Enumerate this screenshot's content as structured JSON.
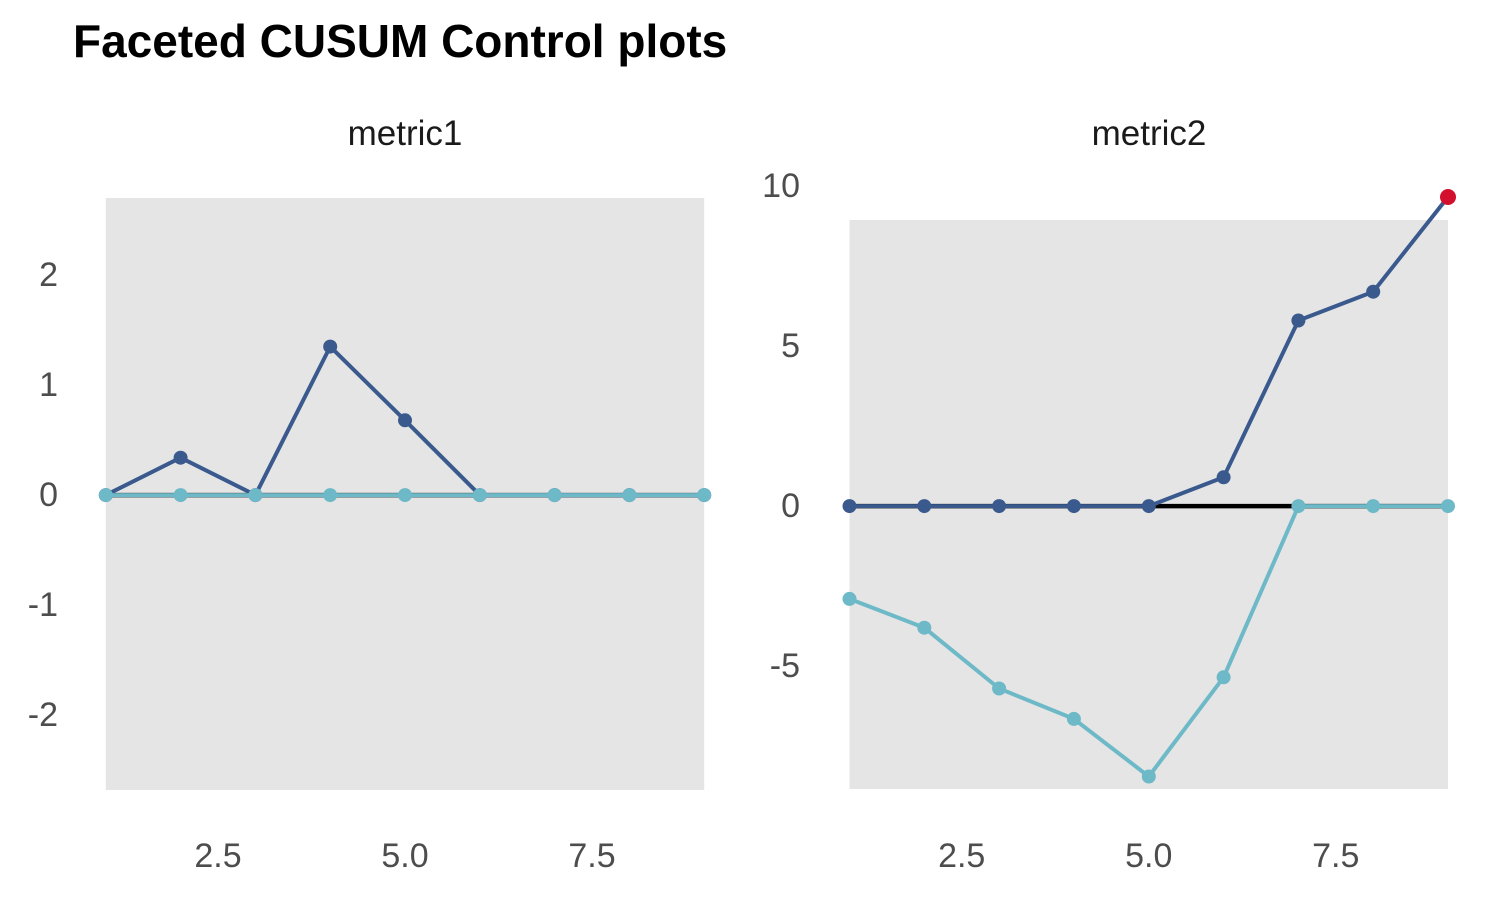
{
  "chart_data": {
    "type": "line",
    "title": "Faceted CUSUM Control plots",
    "colors": {
      "high": "#3A5A8E",
      "low": "#6DB9C7",
      "signal": "#D2102D",
      "center_line": "#000000",
      "panel_bg": "#E5E5E5",
      "axis_text": "#4D4D4D",
      "strip_text": "#1A1A1A",
      "title_text": "#000000"
    },
    "x": [
      1,
      2,
      3,
      4,
      5,
      6,
      7,
      8,
      9
    ],
    "facets": [
      {
        "label": "metric1",
        "ylim": [
          -2.68,
          2.7
        ],
        "center_line": 0,
        "yticks": [
          {
            "label": "2",
            "value": 2
          },
          {
            "label": "1",
            "value": 1
          },
          {
            "label": "0",
            "value": 0
          },
          {
            "label": "-1",
            "value": -1
          },
          {
            "label": "-2",
            "value": -2
          }
        ],
        "xticks": [
          {
            "label": "2.5",
            "value": 2.5
          },
          {
            "label": "5.0",
            "value": 5.0
          },
          {
            "label": "7.5",
            "value": 7.5
          }
        ],
        "series": [
          {
            "name": "cusum_high",
            "color_key": "high",
            "values": [
              0,
              0.34,
              0,
              1.35,
              0.68,
              0,
              0,
              0,
              0
            ],
            "signal_points": []
          },
          {
            "name": "cusum_low",
            "color_key": "low",
            "values": [
              0,
              0,
              0,
              0,
              0,
              0,
              0,
              0,
              0
            ],
            "signal_points": []
          }
        ]
      },
      {
        "label": "metric2",
        "ylim": [
          -8.84,
          8.94
        ],
        "center_line": 0,
        "yticks": [
          {
            "label": "10",
            "value": 10
          },
          {
            "label": "5",
            "value": 5
          },
          {
            "label": "0",
            "value": 0
          },
          {
            "label": "-5",
            "value": -5
          }
        ],
        "xticks": [
          {
            "label": "2.5",
            "value": 2.5
          },
          {
            "label": "5.0",
            "value": 5.0
          },
          {
            "label": "7.5",
            "value": 7.5
          }
        ],
        "series": [
          {
            "name": "cusum_high",
            "color_key": "high",
            "values": [
              0,
              0,
              0,
              0,
              0,
              0.9,
              5.8,
              6.7,
              9.66
            ],
            "signal_points": [
              8
            ]
          },
          {
            "name": "cusum_low",
            "color_key": "low",
            "values": [
              -2.9,
              -3.8,
              -5.7,
              -6.65,
              -8.45,
              -5.35,
              0,
              0,
              0
            ],
            "signal_points": []
          }
        ]
      }
    ]
  }
}
